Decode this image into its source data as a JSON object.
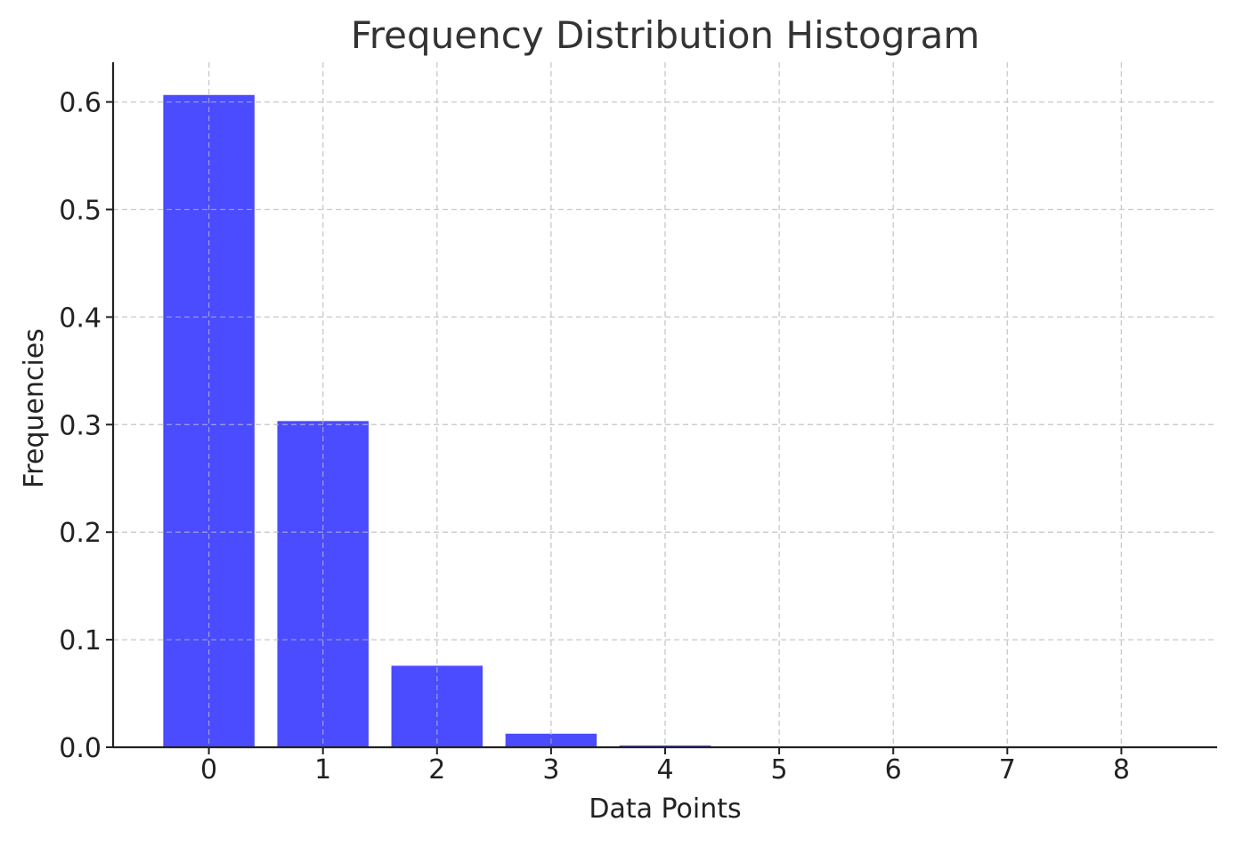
{
  "chart_data": {
    "type": "bar",
    "title": "Frequency Distribution Histogram",
    "xlabel": "Data Points",
    "ylabel": "Frequencies",
    "categories": [
      "0",
      "1",
      "2",
      "3",
      "4",
      "5",
      "6",
      "7",
      "8"
    ],
    "x": [
      0,
      1,
      2,
      3,
      4,
      5,
      6,
      7,
      8
    ],
    "values": [
      0.6065,
      0.3033,
      0.0758,
      0.0126,
      0.0016,
      0.0002,
      0.0,
      0.0,
      0.0
    ],
    "yticks": [
      0.0,
      0.1,
      0.2,
      0.3,
      0.4,
      0.5,
      0.6
    ],
    "ytick_labels": [
      "0.0",
      "0.1",
      "0.2",
      "0.3",
      "0.4",
      "0.5",
      "0.6"
    ],
    "xlim": [
      -0.84,
      8.84
    ],
    "ylim": [
      0,
      0.6369
    ],
    "grid": true,
    "bar_color": "#4b4bff",
    "axis_color": "#222222",
    "grid_color": "#cccccc"
  }
}
